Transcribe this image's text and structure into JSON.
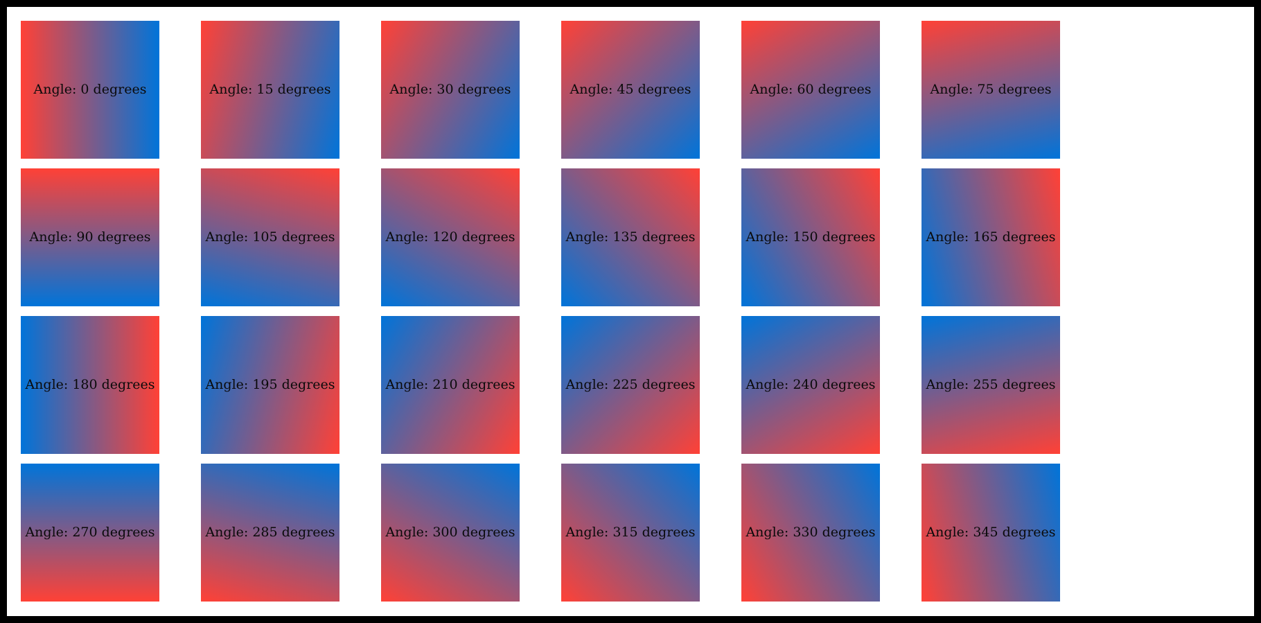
{
  "figure": {
    "frame_color": "#000000",
    "canvas_color": "#ffffff",
    "text_color": "#0a0a0a"
  },
  "gradient": {
    "start_color": "#ff4136",
    "end_color": "#0074d9",
    "angle_convention": "label 0 degrees = red-to-blue left-to-right, angle increases clockwise on screen"
  },
  "tiles": [
    {
      "angle": 0,
      "label": "Angle: 0 degrees"
    },
    {
      "angle": 15,
      "label": "Angle: 15 degrees"
    },
    {
      "angle": 30,
      "label": "Angle: 30 degrees"
    },
    {
      "angle": 45,
      "label": "Angle: 45 degrees"
    },
    {
      "angle": 60,
      "label": "Angle: 60 degrees"
    },
    {
      "angle": 75,
      "label": "Angle: 75 degrees"
    },
    {
      "angle": 90,
      "label": "Angle: 90 degrees"
    },
    {
      "angle": 105,
      "label": "Angle: 105 degrees"
    },
    {
      "angle": 120,
      "label": "Angle: 120 degrees"
    },
    {
      "angle": 135,
      "label": "Angle: 135 degrees"
    },
    {
      "angle": 150,
      "label": "Angle: 150 degrees"
    },
    {
      "angle": 165,
      "label": "Angle: 165 degrees"
    },
    {
      "angle": 180,
      "label": "Angle: 180 degrees"
    },
    {
      "angle": 195,
      "label": "Angle: 195 degrees"
    },
    {
      "angle": 210,
      "label": "Angle: 210 degrees"
    },
    {
      "angle": 225,
      "label": "Angle: 225 degrees"
    },
    {
      "angle": 240,
      "label": "Angle: 240 degrees"
    },
    {
      "angle": 255,
      "label": "Angle: 255 degrees"
    },
    {
      "angle": 270,
      "label": "Angle: 270 degrees"
    },
    {
      "angle": 285,
      "label": "Angle: 285 degrees"
    },
    {
      "angle": 300,
      "label": "Angle: 300 degrees"
    },
    {
      "angle": 315,
      "label": "Angle: 315 degrees"
    },
    {
      "angle": 330,
      "label": "Angle: 330 degrees"
    },
    {
      "angle": 345,
      "label": "Angle: 345 degrees"
    }
  ]
}
